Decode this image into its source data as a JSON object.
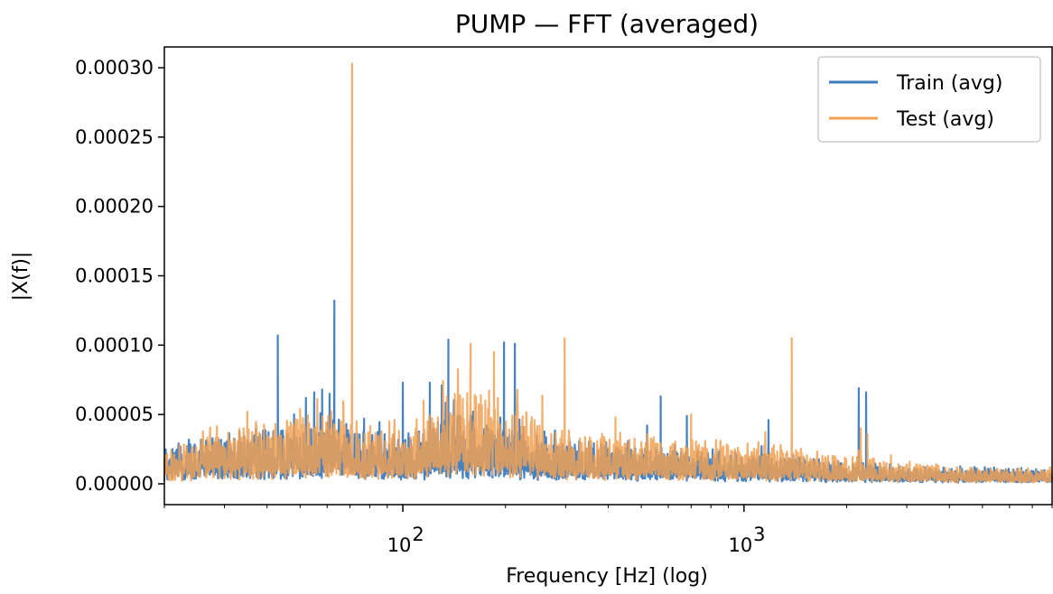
{
  "chart_data": {
    "type": "line",
    "title": "PUMP — FFT (averaged)",
    "xlabel": "Frequency [Hz] (log)",
    "ylabel": "|X(f)|",
    "x_scale": "log",
    "xlim": [
      20,
      8000
    ],
    "ylim": [
      -1.5e-05,
      0.000315
    ],
    "x_ticks": [
      {
        "value": 100,
        "base": "10",
        "exp": "2"
      },
      {
        "value": 1000,
        "base": "10",
        "exp": "3"
      }
    ],
    "y_ticks": [
      {
        "value": 0.0,
        "label": "0.00000"
      },
      {
        "value": 5e-05,
        "label": "0.00005"
      },
      {
        "value": 0.0001,
        "label": "0.00010"
      },
      {
        "value": 0.00015,
        "label": "0.00015"
      },
      {
        "value": 0.0002,
        "label": "0.00020"
      },
      {
        "value": 0.00025,
        "label": "0.00025"
      },
      {
        "value": 0.0003,
        "label": "0.00030"
      }
    ],
    "grid": false,
    "legend_position": "top-right",
    "series": [
      {
        "name": "Train (avg)",
        "color": "#3d7bbf",
        "opacity": 0.95,
        "noise_profile": [
          [
            20,
            1.4e-05
          ],
          [
            40,
            1.9e-05
          ],
          [
            60,
            2.2e-05
          ],
          [
            100,
            1.7e-05
          ],
          [
            150,
            2.6e-05
          ],
          [
            300,
            1.5e-05
          ],
          [
            700,
            1.2e-05
          ],
          [
            1500,
            9e-06
          ],
          [
            3000,
            6e-06
          ],
          [
            8000,
            5e-06
          ]
        ],
        "peaks": [
          [
            43,
            0.000107
          ],
          [
            48,
            5e-05
          ],
          [
            52,
            6.2e-05
          ],
          [
            55,
            6.6e-05
          ],
          [
            58,
            6.8e-05
          ],
          [
            61,
            6.5e-05
          ],
          [
            63,
            0.000132
          ],
          [
            77,
            4.7e-05
          ],
          [
            100,
            7.3e-05
          ],
          [
            120,
            7.3e-05
          ],
          [
            130,
            7.1e-05
          ],
          [
            136,
            0.000104
          ],
          [
            198,
            0.000102
          ],
          [
            213,
            0.000101
          ],
          [
            520,
            4.2e-05
          ],
          [
            570,
            6.3e-05
          ],
          [
            680,
            4.9e-05
          ],
          [
            1180,
            4.6e-05
          ],
          [
            2170,
            6.9e-05
          ],
          [
            2280,
            6.6e-05
          ]
        ]
      },
      {
        "name": "Test (avg)",
        "color": "#f0a155",
        "opacity": 0.85,
        "noise_profile": [
          [
            20,
            1.2e-05
          ],
          [
            40,
            2.2e-05
          ],
          [
            60,
            2.4e-05
          ],
          [
            100,
            1.8e-05
          ],
          [
            150,
            3.3e-05
          ],
          [
            300,
            1.8e-05
          ],
          [
            700,
            1.5e-05
          ],
          [
            1500,
            1.2e-05
          ],
          [
            3000,
            7e-06
          ],
          [
            8000,
            5e-06
          ]
        ],
        "peaks": [
          [
            35,
            5.2e-05
          ],
          [
            50,
            5.4e-05
          ],
          [
            67,
            5.8e-05
          ],
          [
            71,
            0.000303
          ],
          [
            115,
            6e-05
          ],
          [
            142,
            6.5e-05
          ],
          [
            158,
            0.000101
          ],
          [
            185,
            9.5e-05
          ],
          [
            190,
            6.2e-05
          ],
          [
            298,
            0.000105
          ],
          [
            420,
            4.8e-05
          ],
          [
            700,
            5e-05
          ],
          [
            1380,
            0.000105
          ],
          [
            2200,
            4e-05
          ],
          [
            2300,
            3.6e-05
          ]
        ]
      }
    ]
  }
}
